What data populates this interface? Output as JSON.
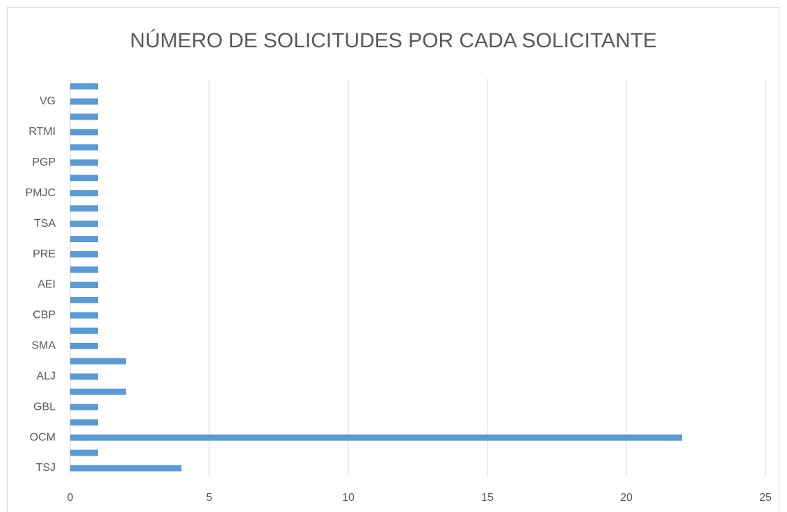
{
  "chart_data": {
    "type": "barh",
    "title": "NÚMERO DE SOLICITUDES POR CADA SOLICITANTE",
    "categories": [
      "TSJ",
      null,
      "OCM",
      null,
      "GBL",
      null,
      "ALJ",
      null,
      "SMA",
      null,
      "CBP",
      null,
      "AEI",
      null,
      "PRE",
      null,
      "TSA",
      null,
      "PMJC",
      null,
      "PGP",
      null,
      "RTMI",
      null,
      "VG",
      null
    ],
    "values": [
      4,
      1,
      22,
      1,
      1,
      2,
      1,
      2,
      1,
      1,
      1,
      1,
      1,
      1,
      1,
      1,
      1,
      1,
      1,
      1,
      1,
      1,
      1,
      1,
      1,
      1
    ],
    "color": "#5b9bd5",
    "xlim": [
      0,
      25
    ],
    "xticks": [
      0,
      5,
      10,
      15,
      20,
      25
    ],
    "grid": true
  }
}
